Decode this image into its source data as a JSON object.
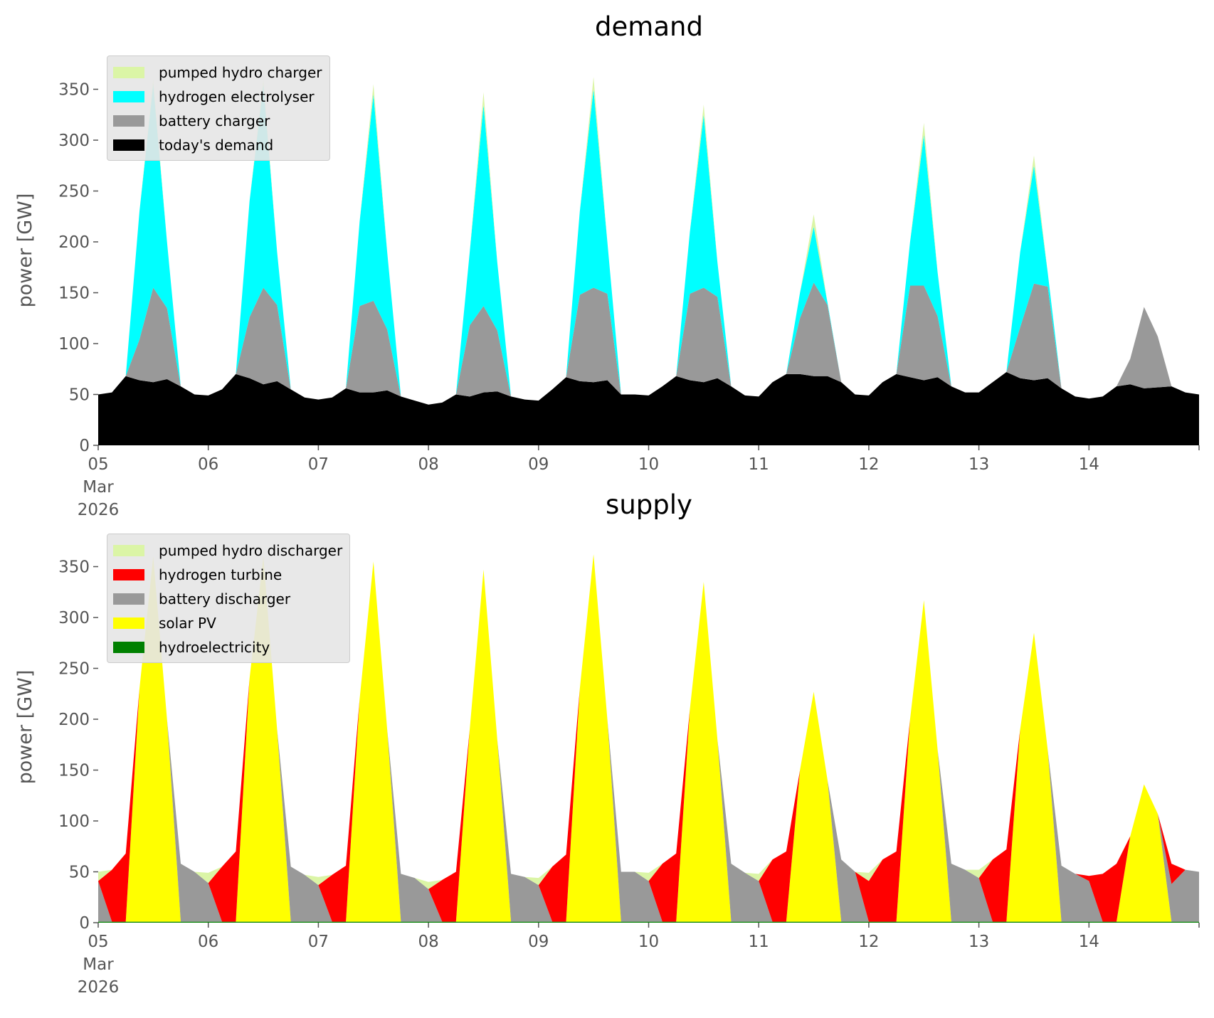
{
  "chart_data": [
    {
      "type": "area",
      "stacked": true,
      "title": "demand",
      "xlabel": "",
      "ylabel": "power [GW]",
      "ylim": [
        0,
        383
      ],
      "grid": false,
      "legend_placement": "top-left",
      "x_start": "2026-03-05 00:00",
      "x_step_hours": 3,
      "x_ticks": [
        "05\nMar\n2026",
        "06",
        "07",
        "08",
        "09",
        "10",
        "11",
        "12",
        "13",
        "14"
      ],
      "y_ticks": [
        0,
        50,
        100,
        150,
        200,
        250,
        300,
        350
      ],
      "legend_order": [
        "pumped hydro charger",
        "hydrogen electrolyser",
        "battery charger",
        "today's demand"
      ],
      "series": [
        {
          "name": "today's demand",
          "color": "#000000",
          "values": [
            50,
            52,
            68,
            64,
            62,
            65,
            58,
            50,
            49,
            55,
            70,
            66,
            60,
            63,
            55,
            47,
            45,
            47,
            56,
            52,
            52,
            54,
            48,
            44,
            40,
            42,
            50,
            48,
            52,
            53,
            48,
            45,
            44,
            55,
            67,
            63,
            62,
            64,
            50,
            50,
            49,
            58,
            68,
            64,
            62,
            66,
            58,
            49,
            48,
            62,
            70,
            70,
            68,
            68,
            62,
            50,
            49,
            62,
            70,
            67,
            64,
            67,
            58,
            52,
            52,
            62,
            72,
            66,
            64,
            66,
            56,
            48,
            46,
            48,
            58,
            60,
            56,
            57,
            58,
            52,
            50
          ]
        },
        {
          "name": "battery charger",
          "color": "#999999",
          "values": [
            0,
            0,
            0,
            40,
            93,
            70,
            0,
            0,
            0,
            0,
            0,
            60,
            95,
            75,
            0,
            0,
            0,
            0,
            0,
            85,
            90,
            60,
            0,
            0,
            0,
            0,
            0,
            70,
            85,
            60,
            0,
            0,
            0,
            0,
            0,
            85,
            93,
            85,
            0,
            0,
            0,
            0,
            0,
            85,
            93,
            80,
            0,
            0,
            0,
            0,
            0,
            55,
            92,
            70,
            0,
            0,
            0,
            0,
            0,
            90,
            93,
            60,
            0,
            0,
            0,
            0,
            0,
            50,
            95,
            90,
            0,
            0,
            0,
            0,
            0,
            25,
            80,
            50,
            0,
            0,
            0
          ]
        },
        {
          "name": "hydrogen electrolyser",
          "color": "#00ffff",
          "values": [
            0,
            0,
            0,
            126,
            200,
            65,
            0,
            0,
            0,
            0,
            0,
            114,
            200,
            52,
            0,
            0,
            0,
            0,
            0,
            83,
            203,
            76,
            0,
            0,
            0,
            0,
            0,
            72,
            198,
            67,
            0,
            0,
            0,
            0,
            0,
            82,
            195,
            51,
            0,
            0,
            0,
            0,
            0,
            61,
            170,
            34,
            0,
            0,
            0,
            0,
            0,
            25,
            55,
            2,
            0,
            0,
            0,
            0,
            0,
            43,
            148,
            43,
            0,
            0,
            0,
            0,
            0,
            74,
            116,
            14,
            0,
            0,
            0,
            0,
            0,
            0,
            0,
            0,
            0,
            0,
            0
          ]
        },
        {
          "name": "pumped hydro charger",
          "color": "#dbf5a6",
          "values": [
            0,
            0,
            0,
            0,
            5,
            0,
            0,
            0,
            0,
            0,
            0,
            0,
            5,
            0,
            0,
            0,
            0,
            0,
            0,
            0,
            10,
            0,
            0,
            0,
            0,
            0,
            0,
            0,
            12,
            0,
            0,
            0,
            0,
            0,
            0,
            0,
            12,
            0,
            0,
            0,
            0,
            0,
            0,
            0,
            10,
            0,
            0,
            0,
            0,
            0,
            0,
            0,
            12,
            0,
            0,
            0,
            0,
            0,
            0,
            0,
            12,
            0,
            0,
            0,
            0,
            0,
            0,
            0,
            10,
            0,
            0,
            0,
            0,
            0,
            0,
            0,
            0,
            0,
            0,
            0,
            0
          ]
        }
      ]
    },
    {
      "type": "area",
      "stacked": true,
      "title": "supply",
      "xlabel": "",
      "ylabel": "power [GW]",
      "ylim": [
        0,
        383
      ],
      "grid": false,
      "legend_placement": "top-left",
      "x_start": "2026-03-05 00:00",
      "x_step_hours": 3,
      "x_ticks": [
        "05\nMar\n2026",
        "06",
        "07",
        "08",
        "09",
        "10",
        "11",
        "12",
        "13",
        "14"
      ],
      "y_ticks": [
        0,
        50,
        100,
        150,
        200,
        250,
        300,
        350
      ],
      "legend_order": [
        "pumped hydro discharger",
        "hydrogen turbine",
        "battery discharger",
        "solar PV",
        "hydroelectricity"
      ],
      "series": [
        {
          "name": "hydroelectricity",
          "color": "#008000",
          "values": [
            1,
            1,
            1,
            1,
            1,
            1,
            1,
            1,
            1,
            1,
            1,
            1,
            1,
            1,
            1,
            1,
            1,
            1,
            1,
            1,
            1,
            1,
            1,
            1,
            1,
            1,
            1,
            1,
            1,
            1,
            1,
            1,
            1,
            1,
            1,
            1,
            1,
            1,
            1,
            1,
            1,
            1,
            1,
            1,
            1,
            1,
            1,
            1,
            1,
            1,
            1,
            1,
            1,
            1,
            1,
            1,
            1,
            1,
            1,
            1,
            1,
            1,
            1,
            1,
            1,
            1,
            1,
            1,
            1,
            1,
            1,
            1,
            1,
            1,
            1,
            1,
            1,
            1,
            1,
            1,
            1
          ]
        },
        {
          "name": "solar PV",
          "color": "#ffff00",
          "values": [
            0,
            0,
            0,
            229,
            359,
            199,
            0,
            0,
            0,
            0,
            0,
            239,
            359,
            189,
            0,
            0,
            0,
            0,
            0,
            219,
            354,
            189,
            0,
            0,
            0,
            0,
            0,
            189,
            346,
            179,
            0,
            0,
            0,
            0,
            0,
            229,
            361,
            199,
            0,
            0,
            0,
            0,
            0,
            209,
            334,
            179,
            0,
            0,
            0,
            0,
            0,
            149,
            226,
            139,
            0,
            0,
            0,
            0,
            0,
            199,
            316,
            169,
            0,
            0,
            0,
            0,
            0,
            189,
            284,
            169,
            0,
            0,
            0,
            0,
            0,
            84,
            135,
            106,
            0,
            0,
            0
          ]
        },
        {
          "name": "battery discharger",
          "color": "#999999",
          "values": [
            40,
            0,
            0,
            0,
            0,
            0,
            57,
            49,
            38,
            0,
            0,
            0,
            0,
            0,
            54,
            46,
            36,
            0,
            0,
            0,
            0,
            0,
            47,
            43,
            32,
            0,
            0,
            0,
            0,
            0,
            47,
            44,
            36,
            0,
            0,
            0,
            0,
            0,
            49,
            49,
            40,
            0,
            0,
            0,
            0,
            0,
            57,
            48,
            40,
            0,
            0,
            0,
            0,
            0,
            61,
            49,
            0,
            0,
            0,
            0,
            0,
            0,
            57,
            51,
            43,
            0,
            0,
            0,
            0,
            0,
            55,
            47,
            40,
            0,
            0,
            0,
            0,
            0,
            37,
            51,
            49
          ]
        },
        {
          "name": "hydrogen turbine",
          "color": "#ff0000",
          "values": [
            0,
            51,
            67,
            0,
            0,
            0,
            0,
            0,
            0,
            54,
            69,
            0,
            0,
            0,
            0,
            0,
            0,
            46,
            55,
            0,
            0,
            0,
            0,
            0,
            0,
            41,
            49,
            0,
            0,
            0,
            0,
            0,
            0,
            54,
            66,
            0,
            0,
            0,
            0,
            0,
            0,
            57,
            67,
            0,
            0,
            0,
            0,
            0,
            0,
            61,
            69,
            0,
            0,
            0,
            0,
            0,
            40,
            61,
            69,
            0,
            0,
            0,
            0,
            0,
            0,
            61,
            71,
            0,
            0,
            0,
            0,
            0,
            5,
            47,
            57,
            0,
            0,
            0,
            20,
            0,
            0
          ]
        },
        {
          "name": "pumped hydro discharger",
          "color": "#dbf5a6",
          "values": [
            9,
            0,
            0,
            0,
            0,
            0,
            0,
            0,
            10,
            0,
            0,
            0,
            0,
            0,
            0,
            0,
            8,
            0,
            0,
            0,
            0,
            0,
            0,
            0,
            7,
            0,
            0,
            0,
            0,
            0,
            0,
            0,
            7,
            0,
            0,
            0,
            0,
            0,
            0,
            0,
            8,
            0,
            0,
            0,
            0,
            0,
            0,
            0,
            7,
            0,
            0,
            0,
            0,
            0,
            0,
            0,
            8,
            0,
            0,
            0,
            0,
            0,
            0,
            0,
            8,
            0,
            0,
            0,
            0,
            0,
            0,
            0,
            0,
            0,
            0,
            0,
            0,
            0,
            0,
            0,
            0
          ]
        }
      ]
    }
  ]
}
